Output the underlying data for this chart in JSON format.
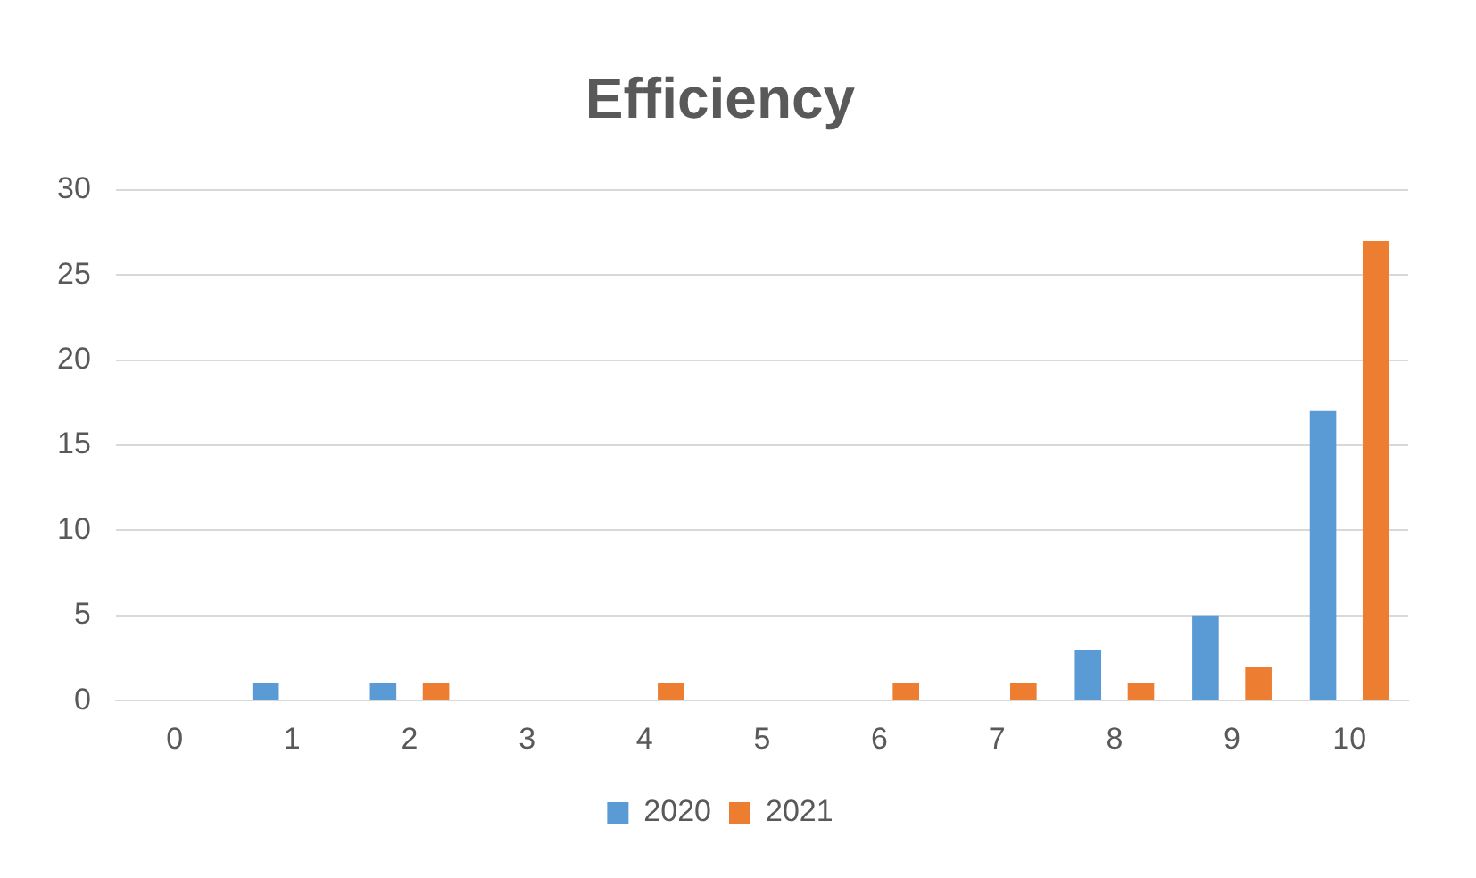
{
  "chart_data": {
    "type": "bar",
    "title": "Efficiency",
    "categories": [
      "0",
      "1",
      "2",
      "3",
      "4",
      "5",
      "6",
      "7",
      "8",
      "9",
      "10"
    ],
    "series": [
      {
        "name": "2020",
        "color": "#5b9bd5",
        "values": [
          0,
          1,
          1,
          0,
          0,
          0,
          0,
          0,
          3,
          5,
          17
        ]
      },
      {
        "name": "2021",
        "color": "#ed7d31",
        "values": [
          0,
          0,
          1,
          0,
          1,
          0,
          1,
          1,
          1,
          2,
          27
        ]
      }
    ],
    "ylim": [
      0,
      30
    ],
    "yticks": [
      0,
      5,
      10,
      15,
      20,
      25,
      30
    ],
    "grid": "y",
    "legend": "bottom"
  }
}
